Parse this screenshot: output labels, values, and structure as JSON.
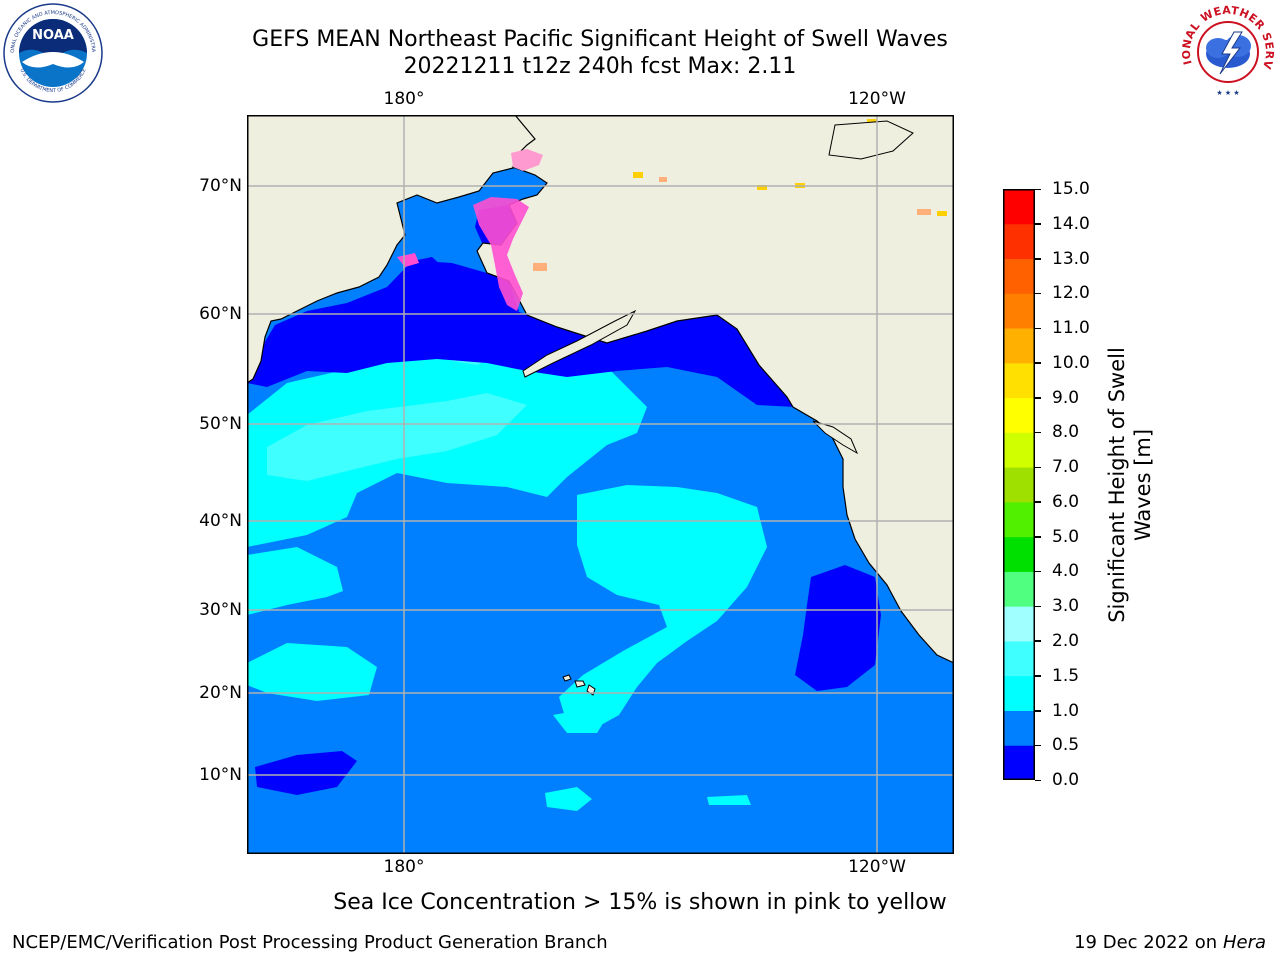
{
  "header": {
    "title_line1": "GEFS MEAN Northeast Pacific Significant Height of Swell Waves",
    "title_line2": "20221211 t12z 240h fcst   Max: 2.11"
  },
  "map": {
    "lon_labels_top": [
      "180°",
      "120°W"
    ],
    "lon_labels_bottom": [
      "180°",
      "120°W"
    ],
    "lat_labels": [
      "70°N",
      "60°N",
      "50°N",
      "40°N",
      "30°N",
      "20°N",
      "10°N"
    ],
    "land_color": "#efefdf",
    "grid_color": "#b0b0b0",
    "ice_colors": [
      "#ff4fd0",
      "#ff9ad0",
      "#ffb07a",
      "#ffd000"
    ]
  },
  "colorbar": {
    "label": "Significant Height of Swell Waves [m]",
    "label_line1": "Significant Height of Swell",
    "label_line2": "Waves [m]",
    "ticks": [
      "15.0",
      "14.0",
      "13.0",
      "12.0",
      "11.0",
      "10.0",
      "9.0",
      "8.0",
      "7.0",
      "6.0",
      "5.0",
      "4.0",
      "3.0",
      "2.0",
      "1.5",
      "1.0",
      "0.5",
      "0.0"
    ],
    "colors": [
      "#0000ff",
      "#0080ff",
      "#00ffff",
      "#40ffff",
      "#a0ffff",
      "#50ff80",
      "#00e000",
      "#50f000",
      "#a0e000",
      "#d0ff00",
      "#ffff00",
      "#ffe000",
      "#ffb000",
      "#ff8000",
      "#ff6000",
      "#ff3000",
      "#ff0000"
    ]
  },
  "footer": {
    "note": "Sea Ice Concentration > 15% is shown in pink to yellow",
    "branch": "NCEP/EMC/Verification Post Processing Product Generation Branch",
    "date": "19 Dec 2022 on",
    "host": "Hera"
  },
  "logos": {
    "noaa_text": "NOAA",
    "noaa_ring_top": "NATIONAL OCEANIC AND ATMOSPHERIC ADMINISTRATION",
    "noaa_ring_bottom": "U.S. DEPARTMENT OF COMMERCE",
    "nws_ring": "NATIONAL WEATHER SERVICE"
  }
}
